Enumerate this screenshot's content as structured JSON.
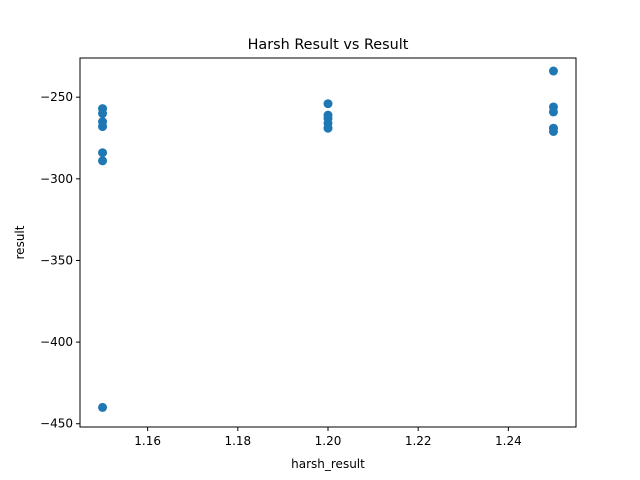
{
  "chart_data": {
    "type": "scatter",
    "title": "Harsh Result vs Result",
    "xlabel": "harsh_result",
    "ylabel": "result",
    "xlim": [
      1.145,
      1.255
    ],
    "ylim": [
      -452,
      -226
    ],
    "xticks": [
      1.16,
      1.18,
      1.2,
      1.22,
      1.24
    ],
    "xtick_labels": [
      "1.16",
      "1.18",
      "1.20",
      "1.22",
      "1.24"
    ],
    "yticks": [
      -250,
      -300,
      -350,
      -400,
      -450
    ],
    "ytick_labels": [
      "−250",
      "−300",
      "−350",
      "−400",
      "−450"
    ],
    "grid": false,
    "color": "#1f77b4",
    "points": [
      {
        "x": 1.15,
        "y": -257
      },
      {
        "x": 1.15,
        "y": -260
      },
      {
        "x": 1.15,
        "y": -265
      },
      {
        "x": 1.15,
        "y": -268
      },
      {
        "x": 1.15,
        "y": -284
      },
      {
        "x": 1.15,
        "y": -289
      },
      {
        "x": 1.15,
        "y": -440
      },
      {
        "x": 1.2,
        "y": -254
      },
      {
        "x": 1.2,
        "y": -261
      },
      {
        "x": 1.2,
        "y": -263
      },
      {
        "x": 1.2,
        "y": -266
      },
      {
        "x": 1.2,
        "y": -269
      },
      {
        "x": 1.25,
        "y": -234
      },
      {
        "x": 1.25,
        "y": -256
      },
      {
        "x": 1.25,
        "y": -259
      },
      {
        "x": 1.25,
        "y": -269
      },
      {
        "x": 1.25,
        "y": -271
      }
    ]
  }
}
